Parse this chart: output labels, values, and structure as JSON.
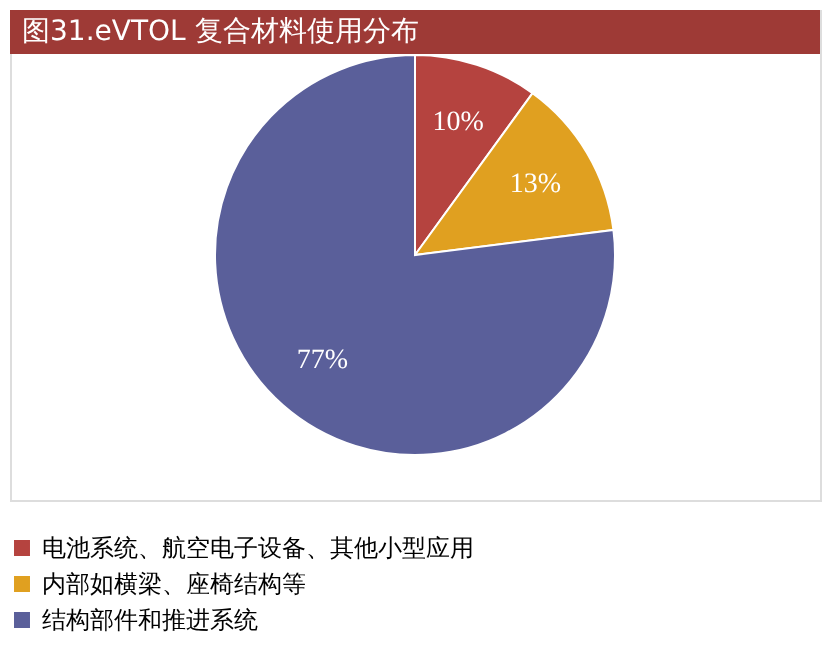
{
  "chart_data": {
    "type": "pie",
    "title": "图31.eVTOL 复合材料使用分布",
    "categories": [
      "电池系统、航空电子设备、其他小型应用",
      "内部如横梁、座椅结构等",
      "结构部件和推进系统"
    ],
    "values": [
      10,
      13,
      77
    ],
    "value_labels": [
      "10%",
      "13%",
      "77%"
    ],
    "colors": [
      "#b5433f",
      "#e0a020",
      "#5a5f9a"
    ],
    "legend": "bottom"
  }
}
